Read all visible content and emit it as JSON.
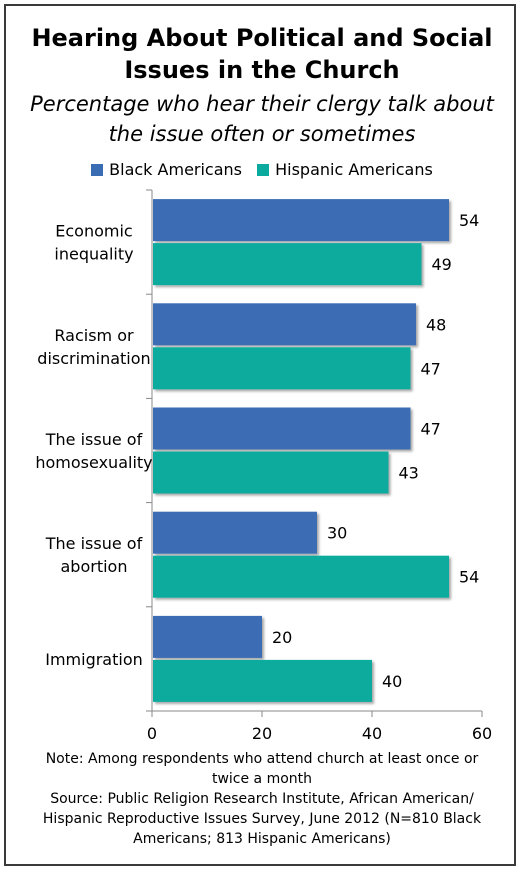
{
  "title_lines": [
    "Hearing About Political and Social",
    "Issues in the Church"
  ],
  "subtitle_lines": [
    "Percentage who hear their clergy talk about",
    "the issue often or sometimes"
  ],
  "legend": [
    {
      "label": "Black Americans",
      "color": "#3A6CB4"
    },
    {
      "label": "Hispanic Americans",
      "color": "#0AAA9E"
    }
  ],
  "chart_data": {
    "type": "bar",
    "orientation": "horizontal",
    "categories": [
      [
        "Economic",
        "inequality"
      ],
      [
        "Racism or",
        "discrimination"
      ],
      [
        "The issue of",
        "homosexuality"
      ],
      [
        "The issue of",
        "abortion"
      ],
      [
        "Immigration"
      ]
    ],
    "series": [
      {
        "name": "Black Americans",
        "color": "#3A6CB4",
        "values": [
          54,
          48,
          47,
          30,
          20
        ]
      },
      {
        "name": "Hispanic Americans",
        "color": "#0AAA9E",
        "values": [
          49,
          47,
          43,
          54,
          40
        ]
      }
    ],
    "xlim": [
      0,
      60
    ],
    "xticks": [
      0,
      20,
      40,
      60
    ],
    "grid": false,
    "legend_position": "top"
  },
  "note_lines": [
    "Note: Among respondents who attend church at least once or",
    "twice a month",
    "Source: Public Religion Research Institute, African American/",
    "Hispanic Reproductive Issues Survey, June 2012 (N=810 Black",
    "Americans; 813 Hispanic Americans)"
  ]
}
